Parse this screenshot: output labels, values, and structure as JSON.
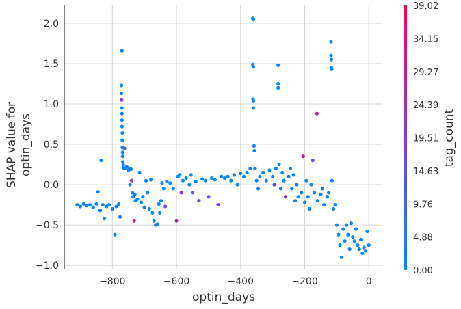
{
  "chart_data": {
    "type": "scatter",
    "xlabel": "optin_days",
    "ylabel_lines": [
      "SHAP value for",
      "optin_days"
    ],
    "xlim": [
      -950,
      40
    ],
    "ylim": [
      -1.05,
      2.22
    ],
    "xticks": [
      -800,
      -600,
      -400,
      -200,
      0
    ],
    "xtick_labels": [
      "−800",
      "−600",
      "−400",
      "−200",
      "0"
    ],
    "yticks": [
      -1.0,
      -0.5,
      0.0,
      0.5,
      1.0,
      1.5,
      2.0
    ],
    "ytick_labels": [
      "−1.0",
      "−0.5",
      "0.0",
      "0.5",
      "1.0",
      "1.5",
      "2.0"
    ],
    "grid": true,
    "color_feature": "tag_count",
    "colorbar": {
      "label": "tag_count",
      "min": 0.0,
      "max": 39.02,
      "ticks": [
        "0.00",
        "4.88",
        "9.76",
        "14.63",
        "19.51",
        "24.39",
        "29.27",
        "34.15",
        "39.02"
      ],
      "colors": [
        "#008afb",
        "#7f3ed6",
        "#ff0052"
      ]
    },
    "points": [
      {
        "x": -910,
        "y": -0.25,
        "c": 1
      },
      {
        "x": -900,
        "y": -0.27,
        "c": 1
      },
      {
        "x": -890,
        "y": -0.24,
        "c": 2
      },
      {
        "x": -880,
        "y": -0.26,
        "c": 1
      },
      {
        "x": -870,
        "y": -0.25,
        "c": 1
      },
      {
        "x": -860,
        "y": -0.28,
        "c": 2
      },
      {
        "x": -850,
        "y": -0.24,
        "c": 1
      },
      {
        "x": -845,
        "y": -0.09,
        "c": 1
      },
      {
        "x": -838,
        "y": -0.32,
        "c": 2
      },
      {
        "x": -830,
        "y": -0.25,
        "c": 1
      },
      {
        "x": -825,
        "y": -0.42,
        "c": 2
      },
      {
        "x": -818,
        "y": -0.27,
        "c": 1
      },
      {
        "x": -810,
        "y": -0.25,
        "c": 1
      },
      {
        "x": -800,
        "y": -0.3,
        "c": 2
      },
      {
        "x": -792,
        "y": -0.62,
        "c": 1
      },
      {
        "x": -788,
        "y": -0.27,
        "c": 1
      },
      {
        "x": -780,
        "y": -0.24,
        "c": 1
      },
      {
        "x": -776,
        "y": -0.4,
        "c": 2
      },
      {
        "x": -835,
        "y": 0.3,
        "c": 2
      },
      {
        "x": -770,
        "y": 1.66,
        "c": 1
      },
      {
        "x": -772,
        "y": 1.23,
        "c": 1
      },
      {
        "x": -772,
        "y": 1.13,
        "c": 1
      },
      {
        "x": -771,
        "y": 1.05,
        "c": 20
      },
      {
        "x": -771,
        "y": 0.95,
        "c": 1
      },
      {
        "x": -770,
        "y": 0.88,
        "c": 2
      },
      {
        "x": -770,
        "y": 0.8,
        "c": 1
      },
      {
        "x": -770,
        "y": 0.72,
        "c": 1
      },
      {
        "x": -769,
        "y": 0.64,
        "c": 1
      },
      {
        "x": -769,
        "y": 0.55,
        "c": 2
      },
      {
        "x": -769,
        "y": 0.46,
        "c": 1
      },
      {
        "x": -768,
        "y": 0.4,
        "c": 1
      },
      {
        "x": -768,
        "y": 0.35,
        "c": 1
      },
      {
        "x": -767,
        "y": 0.28,
        "c": 2
      },
      {
        "x": -766,
        "y": 0.24,
        "c": 1
      },
      {
        "x": -765,
        "y": 0.21,
        "c": 1
      },
      {
        "x": -762,
        "y": 0.45,
        "c": 15
      },
      {
        "x": -760,
        "y": 0.2,
        "c": 1
      },
      {
        "x": -755,
        "y": 0.22,
        "c": 2
      },
      {
        "x": -750,
        "y": 0.18,
        "c": 1
      },
      {
        "x": -746,
        "y": 0.2,
        "c": 1
      },
      {
        "x": -742,
        "y": 0.19,
        "c": 2
      },
      {
        "x": -745,
        "y": 0.0,
        "c": 1
      },
      {
        "x": -740,
        "y": 0.05,
        "c": 22
      },
      {
        "x": -738,
        "y": -0.1,
        "c": 1
      },
      {
        "x": -735,
        "y": -0.15,
        "c": 1
      },
      {
        "x": -730,
        "y": -0.12,
        "c": 2
      },
      {
        "x": -732,
        "y": -0.45,
        "c": 30
      },
      {
        "x": -728,
        "y": -0.2,
        "c": 1
      },
      {
        "x": -722,
        "y": -0.18,
        "c": 1
      },
      {
        "x": -715,
        "y": 0.15,
        "c": 2
      },
      {
        "x": -710,
        "y": -0.22,
        "c": 1
      },
      {
        "x": -705,
        "y": -0.15,
        "c": 1
      },
      {
        "x": -700,
        "y": -0.28,
        "c": 2
      },
      {
        "x": -695,
        "y": 0.05,
        "c": 1
      },
      {
        "x": -690,
        "y": -0.1,
        "c": 1
      },
      {
        "x": -685,
        "y": -0.3,
        "c": 2
      },
      {
        "x": -680,
        "y": 0.06,
        "c": 1
      },
      {
        "x": -675,
        "y": -0.35,
        "c": 1
      },
      {
        "x": -670,
        "y": -0.45,
        "c": 1
      },
      {
        "x": -665,
        "y": -0.5,
        "c": 1
      },
      {
        "x": -660,
        "y": -0.49,
        "c": 2
      },
      {
        "x": -655,
        "y": -0.24,
        "c": 1
      },
      {
        "x": -652,
        "y": -0.35,
        "c": 1
      },
      {
        "x": -648,
        "y": -0.2,
        "c": 1
      },
      {
        "x": -645,
        "y": 0.02,
        "c": 2
      },
      {
        "x": -640,
        "y": -0.05,
        "c": 1
      },
      {
        "x": -635,
        "y": -0.27,
        "c": 15
      },
      {
        "x": -630,
        "y": 0.04,
        "c": 1
      },
      {
        "x": -620,
        "y": 0.02,
        "c": 1
      },
      {
        "x": -610,
        "y": -0.05,
        "c": 2
      },
      {
        "x": -600,
        "y": -0.45,
        "c": 28
      },
      {
        "x": -595,
        "y": 0.1,
        "c": 1
      },
      {
        "x": -590,
        "y": 0.12,
        "c": 2
      },
      {
        "x": -585,
        "y": -0.1,
        "c": 22
      },
      {
        "x": -580,
        "y": 0.05,
        "c": 1
      },
      {
        "x": -570,
        "y": 0.08,
        "c": 1
      },
      {
        "x": -560,
        "y": 0.0,
        "c": 2
      },
      {
        "x": -555,
        "y": 0.12,
        "c": 1
      },
      {
        "x": -550,
        "y": -0.1,
        "c": 14
      },
      {
        "x": -540,
        "y": 0.04,
        "c": 1
      },
      {
        "x": -530,
        "y": -0.2,
        "c": 15
      },
      {
        "x": -520,
        "y": 0.07,
        "c": 2
      },
      {
        "x": -510,
        "y": 0.05,
        "c": 1
      },
      {
        "x": -500,
        "y": -0.15,
        "c": 16
      },
      {
        "x": -490,
        "y": 0.08,
        "c": 1
      },
      {
        "x": -480,
        "y": 0.06,
        "c": 1
      },
      {
        "x": -470,
        "y": -0.25,
        "c": 20
      },
      {
        "x": -460,
        "y": 0.1,
        "c": 2
      },
      {
        "x": -450,
        "y": 0.08,
        "c": 1
      },
      {
        "x": -440,
        "y": 0.1,
        "c": 1
      },
      {
        "x": -430,
        "y": 0.05,
        "c": 2
      },
      {
        "x": -420,
        "y": 0.12,
        "c": 1
      },
      {
        "x": -410,
        "y": 0.0,
        "c": 1
      },
      {
        "x": -400,
        "y": 0.14,
        "c": 2
      },
      {
        "x": -390,
        "y": 0.1,
        "c": 1
      },
      {
        "x": -380,
        "y": 0.15,
        "c": 1
      },
      {
        "x": -370,
        "y": 0.2,
        "c": 2
      },
      {
        "x": -362,
        "y": 2.06,
        "c": 1
      },
      {
        "x": -360,
        "y": 2.05,
        "c": 1
      },
      {
        "x": -362,
        "y": 1.49,
        "c": 1
      },
      {
        "x": -360,
        "y": 1.46,
        "c": 2
      },
      {
        "x": -361,
        "y": 1.06,
        "c": 1
      },
      {
        "x": -360,
        "y": 1.04,
        "c": 1
      },
      {
        "x": -360,
        "y": 0.95,
        "c": 1
      },
      {
        "x": -358,
        "y": 0.48,
        "c": 2
      },
      {
        "x": -357,
        "y": 0.42,
        "c": 1
      },
      {
        "x": -355,
        "y": 0.2,
        "c": 1
      },
      {
        "x": -350,
        "y": 0.05,
        "c": 1
      },
      {
        "x": -345,
        "y": -0.05,
        "c": 2
      },
      {
        "x": -340,
        "y": 0.1,
        "c": 1
      },
      {
        "x": -330,
        "y": 0.15,
        "c": 1
      },
      {
        "x": -320,
        "y": 0.05,
        "c": 2
      },
      {
        "x": -310,
        "y": 0.18,
        "c": 1
      },
      {
        "x": -300,
        "y": 0.1,
        "c": 1
      },
      {
        "x": -295,
        "y": 0.0,
        "c": 14
      },
      {
        "x": -290,
        "y": 0.2,
        "c": 2
      },
      {
        "x": -283,
        "y": 1.48,
        "c": 1
      },
      {
        "x": -283,
        "y": 1.25,
        "c": 1
      },
      {
        "x": -283,
        "y": 1.2,
        "c": 2
      },
      {
        "x": -280,
        "y": 0.25,
        "c": 1
      },
      {
        "x": -275,
        "y": -0.05,
        "c": 1
      },
      {
        "x": -270,
        "y": 0.15,
        "c": 2
      },
      {
        "x": -265,
        "y": 0.05,
        "c": 1
      },
      {
        "x": -260,
        "y": -0.15,
        "c": 20
      },
      {
        "x": -250,
        "y": 0.1,
        "c": 1
      },
      {
        "x": -245,
        "y": 0.2,
        "c": 2
      },
      {
        "x": -240,
        "y": -0.05,
        "c": 1
      },
      {
        "x": -235,
        "y": 0.12,
        "c": 1
      },
      {
        "x": -230,
        "y": -0.2,
        "c": 2
      },
      {
        "x": -225,
        "y": 0.0,
        "c": 1
      },
      {
        "x": -220,
        "y": -0.15,
        "c": 1
      },
      {
        "x": -210,
        "y": -0.1,
        "c": 2
      },
      {
        "x": -205,
        "y": 0.35,
        "c": 30
      },
      {
        "x": -200,
        "y": -0.22,
        "c": 1
      },
      {
        "x": -195,
        "y": 0.05,
        "c": 1
      },
      {
        "x": -190,
        "y": -0.15,
        "c": 2
      },
      {
        "x": -185,
        "y": -0.3,
        "c": 1
      },
      {
        "x": -180,
        "y": 0.0,
        "c": 1
      },
      {
        "x": -175,
        "y": 0.3,
        "c": 15
      },
      {
        "x": -170,
        "y": -0.1,
        "c": 1
      },
      {
        "x": -162,
        "y": 0.88,
        "c": 32
      },
      {
        "x": -160,
        "y": -0.2,
        "c": 1
      },
      {
        "x": -150,
        "y": -0.12,
        "c": 2
      },
      {
        "x": -145,
        "y": -0.05,
        "c": 1
      },
      {
        "x": -140,
        "y": -0.25,
        "c": 1
      },
      {
        "x": -130,
        "y": -0.15,
        "c": 2
      },
      {
        "x": -125,
        "y": -0.1,
        "c": 1
      },
      {
        "x": -118,
        "y": 1.77,
        "c": 1
      },
      {
        "x": -118,
        "y": 1.6,
        "c": 2
      },
      {
        "x": -117,
        "y": 1.55,
        "c": 1
      },
      {
        "x": -117,
        "y": 1.45,
        "c": 1
      },
      {
        "x": -116,
        "y": 1.43,
        "c": 1
      },
      {
        "x": -115,
        "y": 0.05,
        "c": 2
      },
      {
        "x": -110,
        "y": -0.3,
        "c": 1
      },
      {
        "x": -105,
        "y": -0.25,
        "c": 1
      },
      {
        "x": -100,
        "y": -0.5,
        "c": 2
      },
      {
        "x": -95,
        "y": -0.62,
        "c": 1
      },
      {
        "x": -90,
        "y": -0.75,
        "c": 1
      },
      {
        "x": -85,
        "y": -0.9,
        "c": 2
      },
      {
        "x": -80,
        "y": -0.55,
        "c": 1
      },
      {
        "x": -75,
        "y": -0.7,
        "c": 1
      },
      {
        "x": -70,
        "y": -0.5,
        "c": 2
      },
      {
        "x": -65,
        "y": -0.62,
        "c": 1
      },
      {
        "x": -60,
        "y": -0.8,
        "c": 1
      },
      {
        "x": -55,
        "y": -0.48,
        "c": 2
      },
      {
        "x": -50,
        "y": -0.65,
        "c": 1
      },
      {
        "x": -45,
        "y": -0.7,
        "c": 1
      },
      {
        "x": -40,
        "y": -0.55,
        "c": 2
      },
      {
        "x": -35,
        "y": -0.75,
        "c": 1
      },
      {
        "x": -30,
        "y": -0.8,
        "c": 1
      },
      {
        "x": -25,
        "y": -0.68,
        "c": 2
      },
      {
        "x": -20,
        "y": -0.85,
        "c": 1
      },
      {
        "x": -15,
        "y": -0.78,
        "c": 1
      },
      {
        "x": -10,
        "y": -0.82,
        "c": 2
      },
      {
        "x": -5,
        "y": -0.58,
        "c": 1
      },
      {
        "x": 0,
        "y": -0.75,
        "c": 1
      }
    ]
  }
}
